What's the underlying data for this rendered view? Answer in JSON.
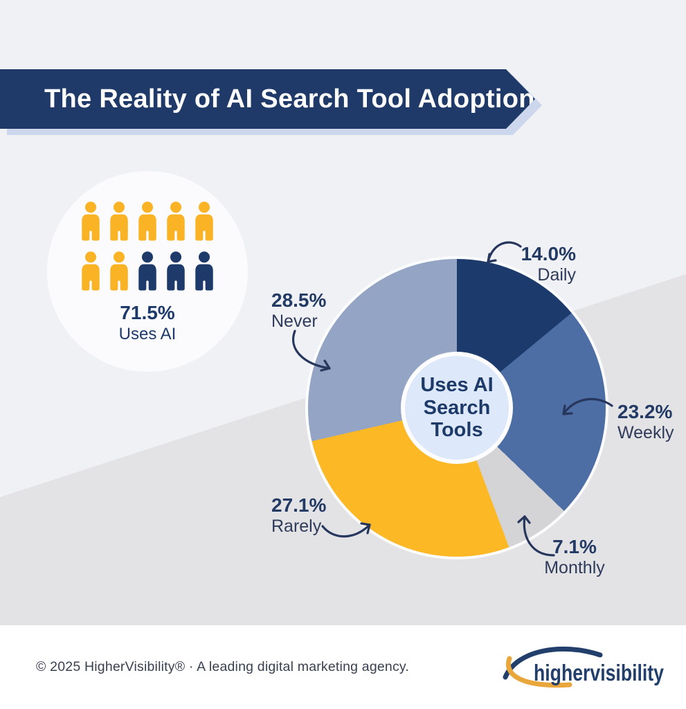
{
  "header": {
    "title": "The Reality of AI Search Tool Adoption"
  },
  "usage_stat": {
    "percent": "71.5%",
    "label": "Uses AI",
    "icons_total": 10,
    "icons_highlighted": 7
  },
  "chart_data": {
    "type": "pie",
    "donut": true,
    "direction": "clockwise",
    "start_angle_deg": 0,
    "center_label_lines": [
      "Uses AI",
      "Search",
      "Tools"
    ],
    "segments": [
      {
        "label": "Daily",
        "value": 14.0,
        "display": "14.0%",
        "color": "#1c3a6b"
      },
      {
        "label": "Weekly",
        "value": 23.2,
        "display": "23.2%",
        "color": "#4d6da5"
      },
      {
        "label": "Monthly",
        "value": 7.1,
        "display": "7.1%",
        "color": "#d4d4d6"
      },
      {
        "label": "Rarely",
        "value": 27.1,
        "display": "27.1%",
        "color": "#fcb825"
      },
      {
        "label": "Never",
        "value": 28.5,
        "display": "28.5%",
        "color": "#93a4c4"
      }
    ]
  },
  "footer": {
    "copyright": "© 2025 HigherVisibility® · A leading digital marketing agency.",
    "logo_text": "highervisibility"
  },
  "colors": {
    "gold": "#f9b324",
    "navy": "#1d3a6b",
    "banner": "#1f3a68",
    "banner_shadow": "#ccd7ee",
    "bg_upper": "#f0f1f4",
    "bg_lower": "#e3e3e6",
    "hole": "#dde8fa"
  }
}
